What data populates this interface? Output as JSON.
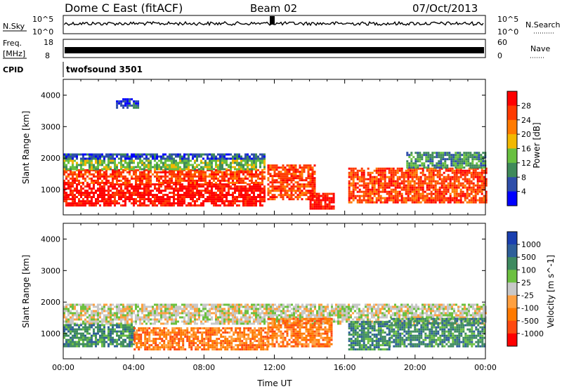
{
  "header": {
    "station": "Dome C East (fitACF)",
    "beam": "Beam 02",
    "date": "07/Oct/2013"
  },
  "top_panels": {
    "nsky": {
      "label": "N.Sky",
      "tick_top": "10^5",
      "tick_bottom": "10^0"
    },
    "nsearch": {
      "label": "N.Search",
      "tick_top": "10^5",
      "tick_bottom": "10^0"
    },
    "freq": {
      "label_line1": "Freq.",
      "label_line2": "[MHz]",
      "tick_top": "18",
      "tick_bottom": "8"
    },
    "nave": {
      "label": "Nave",
      "tick_top": "60",
      "tick_bottom": "0"
    },
    "cpid": {
      "label": "CPID",
      "value": "twofsound 3501"
    }
  },
  "colors": {
    "power_scale": [
      "#0000ff",
      "#2e4eaa",
      "#3f8a5a",
      "#68c040",
      "#f2b800",
      "#ff7a00",
      "#ff3a00",
      "#ff0000"
    ],
    "velocity_scale": [
      "#1a3fb0",
      "#2e5f9a",
      "#3e8a60",
      "#6cc040",
      "#c8c8c8",
      "#ffa040",
      "#ff7a00",
      "#ff4a10",
      "#ff0000"
    ]
  },
  "chart_data": [
    {
      "type": "heatmap",
      "name": "Power",
      "xlabel": "",
      "ylabel": "Slant Range [km]",
      "x_ticks": [
        "00:00",
        "04:00",
        "08:00",
        "12:00",
        "16:00",
        "20:00",
        "00:00"
      ],
      "xlim": [
        0,
        24
      ],
      "ylim": [
        200,
        4500
      ],
      "y_ticks": [
        1000,
        2000,
        3000,
        4000
      ],
      "colorbar": {
        "label": "Power [dB]",
        "ticks": [
          "4",
          "8",
          "12",
          "16",
          "20",
          "24",
          "28"
        ]
      },
      "echo_regions": [
        {
          "t": [
            0.0,
            11.5
          ],
          "r": [
            500,
            1200
          ],
          "color_index": 7
        },
        {
          "t": [
            0.0,
            11.5
          ],
          "r": [
            1200,
            1650
          ],
          "color_index": 6
        },
        {
          "t": [
            0.0,
            11.5
          ],
          "r": [
            1650,
            1950
          ],
          "color_index": 3
        },
        {
          "t": [
            0.0,
            11.5
          ],
          "r": [
            1950,
            2150
          ],
          "color_index": 1
        },
        {
          "t": [
            11.6,
            14.3
          ],
          "r": [
            700,
            1800
          ],
          "color_index": 6
        },
        {
          "t": [
            14.0,
            15.4
          ],
          "r": [
            400,
            900
          ],
          "color_index": 7
        },
        {
          "t": [
            16.2,
            24.0
          ],
          "r": [
            600,
            1700
          ],
          "color_index": 6
        },
        {
          "t": [
            19.5,
            24.0
          ],
          "r": [
            1700,
            2200
          ],
          "color_index": 2
        },
        {
          "t": [
            3.0,
            4.2
          ],
          "r": [
            3600,
            3900
          ],
          "color_index": 1
        }
      ]
    },
    {
      "type": "heatmap",
      "name": "Velocity",
      "xlabel": "Time UT",
      "ylabel": "Slant Range [km]",
      "x_ticks": [
        "00:00",
        "04:00",
        "08:00",
        "12:00",
        "16:00",
        "20:00",
        "00:00"
      ],
      "xlim": [
        0,
        24
      ],
      "ylim": [
        200,
        4500
      ],
      "y_ticks": [
        1000,
        2000,
        3000,
        4000
      ],
      "colorbar": {
        "label": "Velocity [m s^-1]",
        "ticks": [
          "1000",
          "500",
          "100",
          "25",
          "-25",
          "-100",
          "-500",
          "-1000"
        ]
      },
      "echo_regions": [
        {
          "t": [
            0.0,
            24.0
          ],
          "r": [
            1300,
            1950
          ],
          "color_index": 4
        },
        {
          "t": [
            0.0,
            4.0
          ],
          "r": [
            600,
            1300
          ],
          "color_index": 2
        },
        {
          "t": [
            4.0,
            11.6
          ],
          "r": [
            500,
            1200
          ],
          "color_index": 6
        },
        {
          "t": [
            11.6,
            15.3
          ],
          "r": [
            600,
            1500
          ],
          "color_index": 6
        },
        {
          "t": [
            16.2,
            18.5
          ],
          "r": [
            500,
            1400
          ],
          "color_index": 2
        },
        {
          "t": [
            18.5,
            24.0
          ],
          "r": [
            600,
            1500
          ],
          "color_index": 2
        }
      ]
    }
  ]
}
